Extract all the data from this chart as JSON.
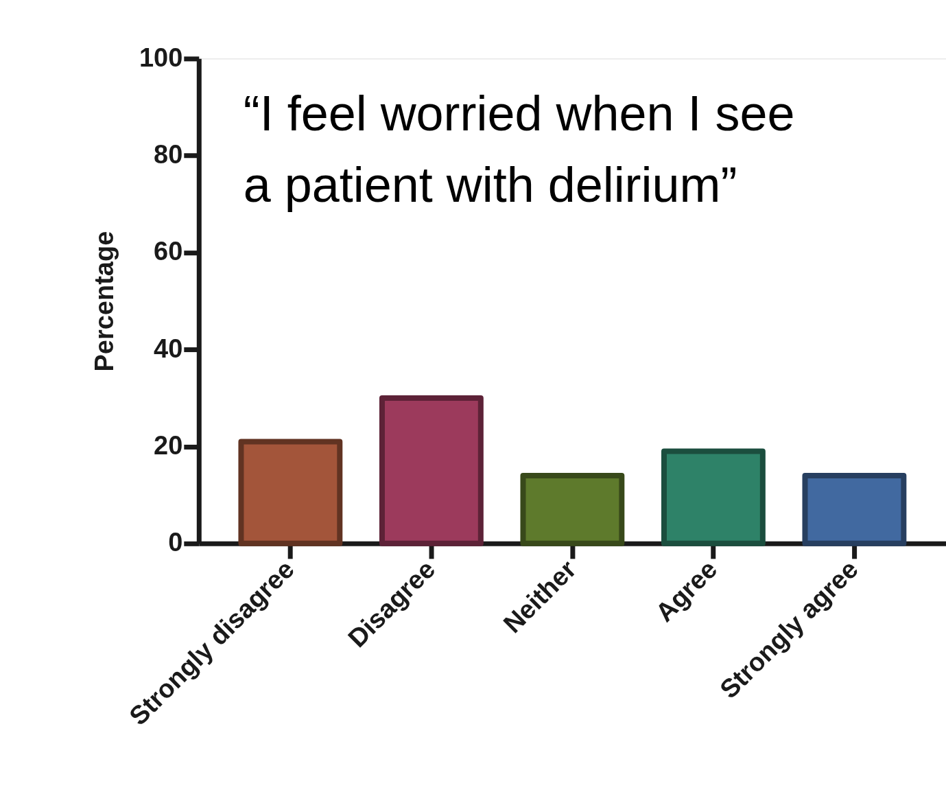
{
  "chart_data": {
    "type": "bar",
    "title": "“I feel worried when I see\na patient with delirium”",
    "ylabel": "Percentage",
    "categories": [
      "Strongly disagree",
      "Disagree",
      "Neither",
      "Agree",
      "Strongly agree"
    ],
    "values": [
      21,
      30,
      14,
      19,
      14
    ],
    "colors": [
      "#a3553a",
      "#9c3a5c",
      "#5e7a2c",
      "#2e8268",
      "#4169a0"
    ],
    "ylim": [
      0,
      100
    ],
    "yticks": [
      0,
      20,
      40,
      60,
      80,
      100
    ],
    "grid": false
  }
}
